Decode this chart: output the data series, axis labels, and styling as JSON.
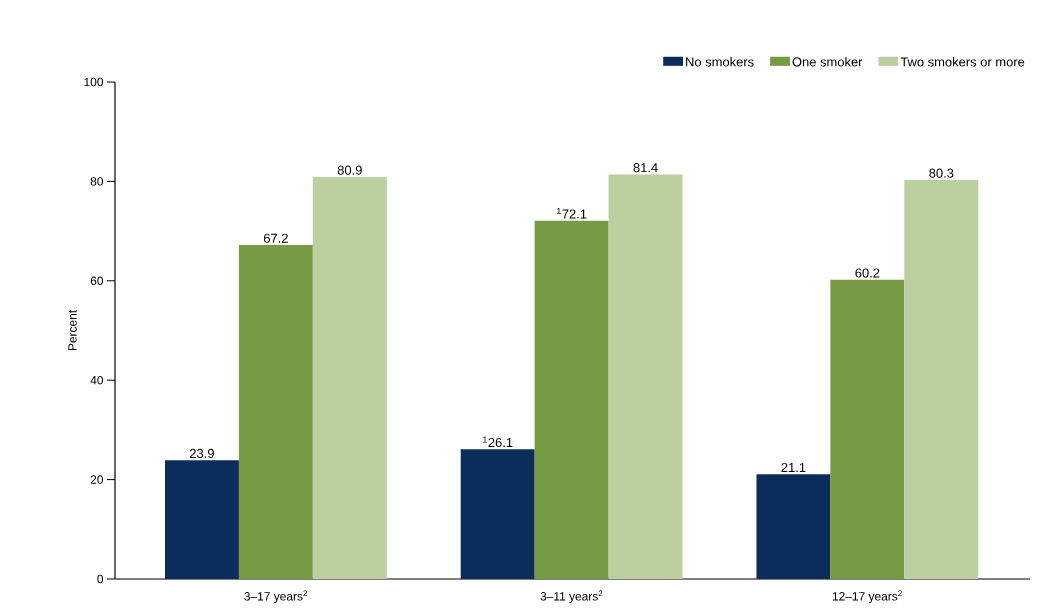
{
  "chart_data": {
    "type": "bar",
    "ylabel": "Percent",
    "categories": [
      "3–17 years$^{2}$",
      "3–11 years$^{2}$",
      "12–17 years$^{2}$"
    ],
    "series": [
      {
        "name": "No smokers",
        "color": "#0b2d5b",
        "values": [
          23.9,
          26.1,
          21.1
        ],
        "value_labels": [
          "23.9",
          "$^{1}$26.1",
          "21.1"
        ]
      },
      {
        "name": "One smoker",
        "color": "#779b43",
        "values": [
          67.2,
          72.1,
          60.2
        ],
        "value_labels": [
          "67.2",
          "$^{1}$72.1",
          "60.2"
        ]
      },
      {
        "name": "Two smokers or more",
        "color": "#bbd09e",
        "values": [
          80.9,
          81.4,
          80.3
        ],
        "value_labels": [
          "80.9",
          "81.4",
          "80.3"
        ]
      }
    ],
    "ylim": [
      0,
      100
    ],
    "yticks": [
      0,
      20,
      40,
      60,
      80,
      100
    ],
    "grid": false,
    "legend": "top right"
  }
}
